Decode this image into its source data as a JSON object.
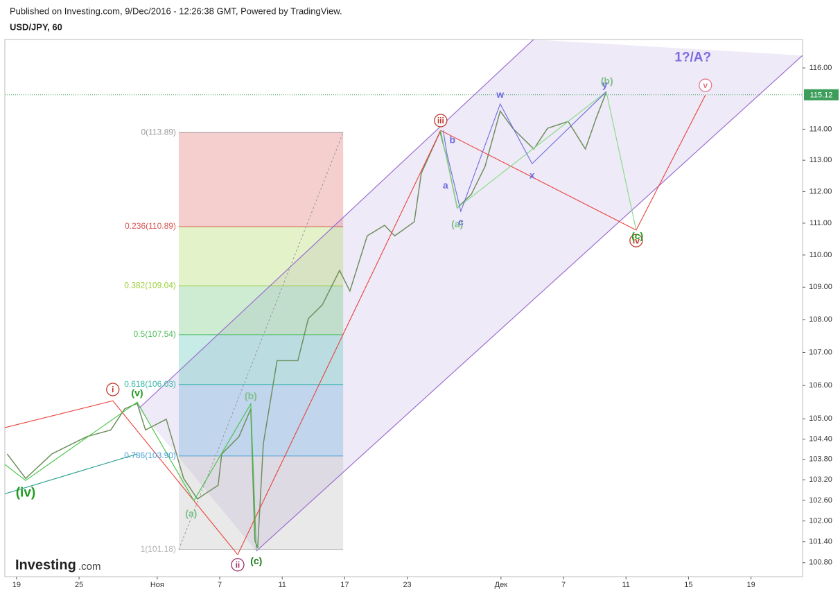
{
  "header": {
    "published": "Published on Investing.com, 9/Dec/2016 - 12:26:38 GMT, Powered by TradingView.",
    "symbol": "USD/JPY, 60"
  },
  "logo": {
    "name": "Investing",
    "suffix": ".com"
  },
  "chart_data": {
    "type": "line",
    "log_scale": true,
    "xlim": [
      -0.75,
      50.3
    ],
    "ylim": [
      100.4,
      116.94
    ],
    "xticks": [
      {
        "value": 0,
        "label": "19"
      },
      {
        "value": 4,
        "label": "25"
      },
      {
        "value": 9,
        "label": "Ноя"
      },
      {
        "value": 13,
        "label": "7"
      },
      {
        "value": 17,
        "label": "11"
      },
      {
        "value": 21,
        "label": "17"
      },
      {
        "value": 25,
        "label": "23"
      },
      {
        "value": 31,
        "label": "Дек"
      },
      {
        "value": 35,
        "label": "7"
      },
      {
        "value": 39,
        "label": "11"
      },
      {
        "value": 43,
        "label": "15"
      },
      {
        "value": 47,
        "label": "19"
      }
    ],
    "yticks": [
      {
        "value": 116,
        "label": "116.00"
      },
      {
        "value": 114,
        "label": "114.00"
      },
      {
        "value": 113,
        "label": "113.00"
      },
      {
        "value": 112,
        "label": "112.00"
      },
      {
        "value": 111,
        "label": "111.00"
      },
      {
        "value": 110,
        "label": "110.00"
      },
      {
        "value": 109,
        "label": "109.00"
      },
      {
        "value": 108,
        "label": "108.00"
      },
      {
        "value": 107,
        "label": "107.00"
      },
      {
        "value": 106,
        "label": "106.00"
      },
      {
        "value": 105,
        "label": "105.00"
      },
      {
        "value": 104.4,
        "label": "104.40"
      },
      {
        "value": 103.8,
        "label": "103.80"
      },
      {
        "value": 103.2,
        "label": "103.20"
      },
      {
        "value": 102.6,
        "label": "102.60"
      },
      {
        "value": 102,
        "label": "102.00"
      },
      {
        "value": 101.4,
        "label": "101.40"
      },
      {
        "value": 100.8,
        "label": "100.80"
      }
    ],
    "last_price": 115.12,
    "last_price_color": "#3c9e5a",
    "series": [
      {
        "color": "#6e8f5e",
        "x": [
          -0.6,
          0.58,
          2.26,
          4.48,
          6.03,
          6.92,
          7.72,
          8.25,
          9.58,
          10.69,
          11.57,
          12.9,
          13.13,
          14.23,
          14.99,
          15.25,
          15.43,
          15.79,
          16.67,
          18.0,
          18.67,
          19.56,
          20.67,
          21.33,
          22.44,
          23.55,
          24.2,
          25.45,
          25.9,
          27.1,
          27.5,
          28.2,
          29.1,
          29.98,
          30.95,
          31.75,
          33.1,
          33.98,
          35.3,
          36.4,
          37.1,
          37.7
        ],
        "values": [
          103.96,
          103.24,
          103.96,
          104.47,
          104.67,
          105.3,
          105.46,
          104.67,
          104.99,
          103.24,
          102.64,
          103.04,
          103.96,
          104.47,
          105.3,
          101.43,
          101.23,
          104.26,
          106.75,
          106.75,
          108.03,
          108.45,
          109.52,
          108.88,
          110.6,
          110.93,
          110.6,
          111.04,
          112.58,
          113.92,
          113.14,
          111.48,
          111.91,
          112.8,
          114.59,
          114.03,
          113.36,
          114.03,
          114.25,
          113.36,
          114.37,
          115.16
        ]
      }
    ],
    "fib": {
      "x": [
        10.38,
        20.9
      ],
      "levels": [
        {
          "value": 113.89,
          "label": "0(113.89)",
          "color": "#9a9a9a"
        },
        {
          "value": 110.89,
          "label": "0.236(110.89)",
          "color": "#d9534f"
        },
        {
          "value": 109.04,
          "label": "0.382(109.04)",
          "color": "#9bcf3a"
        },
        {
          "value": 107.54,
          "label": "0.5(107.54)",
          "color": "#4cbb5a"
        },
        {
          "value": 106.03,
          "label": "0.618(106.03)",
          "color": "#35b8a6"
        },
        {
          "value": 103.9,
          "label": "0.786(103.90)",
          "color": "#4a9fd4"
        },
        {
          "value": 101.18,
          "label": "1(101.18)",
          "color": "#b0b0b0"
        }
      ],
      "trend": {
        "color": "#999999",
        "x": [
          10.38,
          20.9
        ],
        "values": [
          101.18,
          113.89
        ]
      }
    },
    "channel": {
      "color": "#9b6fd0",
      "fill": "#9b7fd0",
      "lines": [
        {
          "x": [
            7.8,
            33.08
          ],
          "values": [
            105.3,
            116.94
          ]
        },
        {
          "x": [
            15.34,
            50.29
          ],
          "values": [
            101.13,
            116.41
          ]
        }
      ]
    },
    "wave_lines": [
      {
        "color": "#e8413c",
        "x": [
          -0.75,
          6.16,
          14.15,
          27.14,
          39.65,
          44.08
        ],
        "values": [
          104.74,
          105.54,
          101.03,
          113.96,
          110.78,
          115.11
        ]
      },
      {
        "color": "#3fc23f",
        "x": [
          -0.75,
          0.58,
          7.72,
          11.35,
          14.99,
          15.34
        ],
        "values": [
          103.65,
          103.18,
          105.5,
          102.59,
          105.45,
          101.19
        ]
      },
      {
        "color": "#7fdc7f",
        "x": [
          27.14,
          28.2,
          37.74,
          39.65
        ],
        "values": [
          113.96,
          111.48,
          115.22,
          110.78
        ]
      },
      {
        "color": "#6b6bdd",
        "x": [
          27.3,
          27.54,
          28.43,
          30.95,
          32.99,
          37.74
        ],
        "values": [
          113.96,
          113.21,
          111.37,
          114.82,
          112.89,
          115.22
        ]
      },
      {
        "color": "#2a9d8f",
        "x": [
          -0.75,
          7.72
        ],
        "values": [
          102.79,
          103.96
        ]
      }
    ],
    "annotations": [
      {
        "text": "i",
        "x": 6.16,
        "value": 105.88,
        "color": "#c0392b",
        "circled": true
      },
      {
        "text": "ii",
        "x": 14.15,
        "value": 100.74,
        "color": "#a0306a",
        "circled": true
      },
      {
        "text": "iii",
        "x": 27.14,
        "value": 114.28,
        "color": "#c0392b",
        "circled": true
      },
      {
        "text": "iv",
        "x": 39.65,
        "value": 110.45,
        "color": "#c0392b",
        "circled": true
      },
      {
        "text": "v",
        "x": 44.08,
        "value": 115.43,
        "color": "#e07a8a",
        "circled": true
      },
      {
        "text": "(iv)",
        "x": 0.58,
        "value": 102.83,
        "color": "#1e9a1e",
        "circled": false
      },
      {
        "text": "(v)",
        "x": 7.72,
        "value": 105.78,
        "color": "#1e9a1e",
        "circled": false
      },
      {
        "text": "(a)",
        "x": 11.17,
        "value": 102.22,
        "color": "#7cbf8a",
        "circled": false
      },
      {
        "text": "(b)",
        "x": 14.99,
        "value": 105.69,
        "color": "#7cbf8a",
        "circled": false
      },
      {
        "text": "(c)",
        "x": 15.34,
        "value": 100.85,
        "color": "#1e7a1e",
        "circled": false
      },
      {
        "text": "(a)",
        "x": 28.2,
        "value": 110.97,
        "color": "#7cbf8a",
        "circled": false
      },
      {
        "text": "(b)",
        "x": 37.78,
        "value": 115.57,
        "color": "#7cbf8a",
        "circled": false
      },
      {
        "text": "(c)",
        "x": 39.73,
        "value": 110.6,
        "color": "#1e9a1e",
        "circled": false
      },
      {
        "text": "a",
        "x": 27.45,
        "value": 112.2,
        "color": "#6b6bdd",
        "circled": false
      },
      {
        "text": "b",
        "x": 27.89,
        "value": 113.65,
        "color": "#6b6bdd",
        "circled": false
      },
      {
        "text": "c",
        "x": 28.43,
        "value": 111.04,
        "color": "#6b6bdd",
        "circled": false
      },
      {
        "text": "w",
        "x": 30.95,
        "value": 115.13,
        "color": "#6b6bdd",
        "circled": false
      },
      {
        "text": "x",
        "x": 32.99,
        "value": 112.52,
        "color": "#6b6bdd",
        "circled": false
      },
      {
        "text": "y",
        "x": 37.65,
        "value": 115.46,
        "color": "#6b6bdd",
        "circled": false
      },
      {
        "text": "1?/A?",
        "x": 43.28,
        "value": 116.36,
        "color": "#7b6be0",
        "circled": false
      }
    ]
  }
}
